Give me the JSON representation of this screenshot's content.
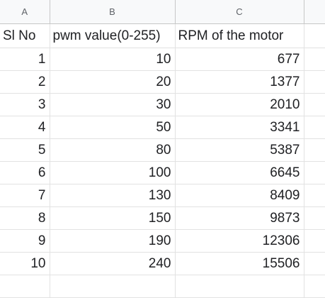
{
  "column_headers": [
    "A",
    "B",
    "C",
    ""
  ],
  "table": {
    "headers": [
      "Sl No",
      "pwm value(0-255)",
      "RPM of the motor"
    ],
    "rows": [
      [
        "1",
        "10",
        "677"
      ],
      [
        "2",
        "20",
        "1377"
      ],
      [
        "3",
        "30",
        "2010"
      ],
      [
        "4",
        "50",
        "3341"
      ],
      [
        "5",
        "80",
        "5387"
      ],
      [
        "6",
        "100",
        "6645"
      ],
      [
        "7",
        "130",
        "8409"
      ],
      [
        "8",
        "150",
        "9873"
      ],
      [
        "9",
        "190",
        "12306"
      ],
      [
        "10",
        "240",
        "15506"
      ]
    ]
  },
  "colors": {
    "header_bg": "#f8f9fa",
    "header_text": "#5f6368",
    "gridline": "#e2e2e2",
    "cell_text": "#202124"
  }
}
